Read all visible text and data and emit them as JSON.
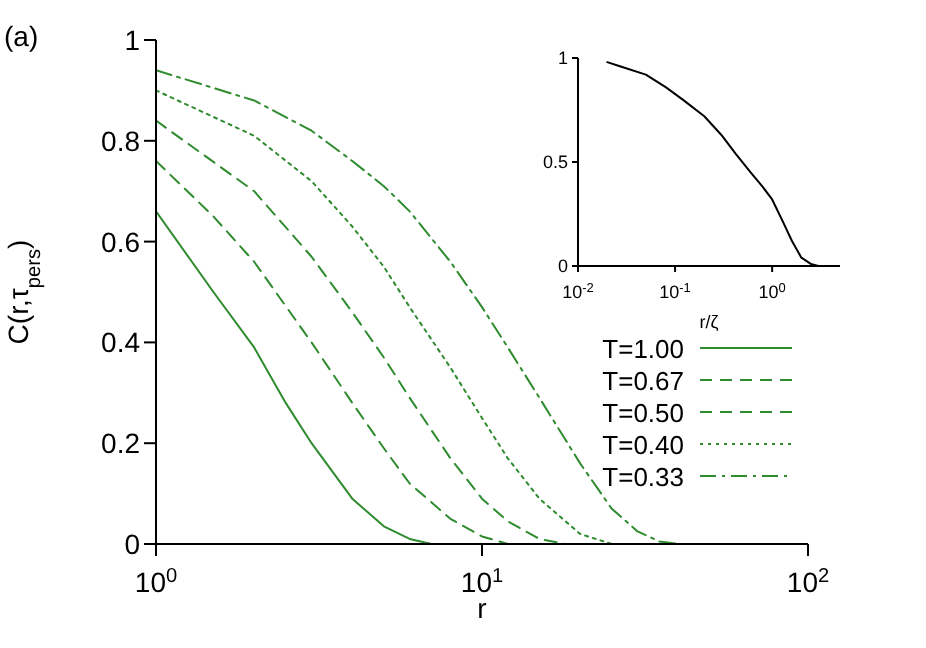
{
  "chart_data": [
    {
      "type": "line",
      "xlabel": "r",
      "ylabel": "C(r,τ$_{pers}$)",
      "annotations": [
        "(a)"
      ],
      "log": "x",
      "xlim": [
        1,
        100
      ],
      "xticks": [
        {
          "value": 1,
          "label": "10$^{0}$"
        },
        {
          "value": 10,
          "label": "10$^{1}$"
        },
        {
          "value": 100,
          "label": "10$^{2}$"
        }
      ],
      "ylim": [
        0,
        1
      ],
      "yticks": [
        0,
        0.2,
        0.4,
        0.6,
        0.8,
        1
      ],
      "grid": false,
      "legend": "bottom right",
      "marker": "none",
      "series": [
        {
          "name": "T=1.00",
          "color": "#2e8b2e",
          "line_style": "solid",
          "x": [
            1,
            1.5,
            2,
            2.5,
            3,
            4,
            5,
            6,
            7
          ],
          "values": [
            0.66,
            0.5,
            0.39,
            0.28,
            0.2,
            0.09,
            0.035,
            0.01,
            0
          ]
        },
        {
          "name": "T=0.67",
          "color": "#2e8b2e",
          "line_style": "dashed",
          "x": [
            1,
            1.5,
            2,
            3,
            4,
            5,
            6,
            8,
            10,
            12
          ],
          "values": [
            0.76,
            0.65,
            0.56,
            0.4,
            0.28,
            0.19,
            0.12,
            0.05,
            0.015,
            0
          ]
        },
        {
          "name": "T=0.50",
          "color": "#2e8b2e",
          "line_style": "dashed",
          "x": [
            1,
            2,
            3,
            4,
            5,
            6,
            8,
            10,
            12,
            15,
            18
          ],
          "values": [
            0.84,
            0.7,
            0.57,
            0.46,
            0.37,
            0.29,
            0.17,
            0.09,
            0.045,
            0.01,
            0
          ]
        },
        {
          "name": "T=0.40",
          "color": "#2e8b2e",
          "line_style": "dotted",
          "x": [
            1,
            2,
            3,
            4,
            5,
            6,
            8,
            10,
            12,
            15,
            20,
            25
          ],
          "values": [
            0.9,
            0.81,
            0.72,
            0.63,
            0.55,
            0.47,
            0.35,
            0.25,
            0.17,
            0.09,
            0.02,
            0
          ]
        },
        {
          "name": "T=0.33",
          "color": "#2e8b2e",
          "line_style": "dashdot",
          "x": [
            1,
            2,
            3,
            4,
            5,
            6,
            8,
            10,
            12,
            15,
            20,
            25,
            30,
            35,
            40
          ],
          "values": [
            0.94,
            0.88,
            0.82,
            0.76,
            0.71,
            0.66,
            0.56,
            0.47,
            0.39,
            0.29,
            0.16,
            0.07,
            0.025,
            0.005,
            0
          ]
        }
      ]
    },
    {
      "type": "line",
      "xlabel": "r/ζ",
      "log": "x",
      "xlim": [
        0.01,
        5
      ],
      "xticks": [
        {
          "value": 0.01,
          "label": "10$^{-2}$"
        },
        {
          "value": 0.1,
          "label": "10$^{-1}$"
        },
        {
          "value": 1,
          "label": "10$^{0}$"
        }
      ],
      "ylim": [
        0,
        1
      ],
      "yticks": [
        0,
        0.5,
        1
      ],
      "grid": false,
      "marker": "none",
      "series": [
        {
          "color": "#000000",
          "line_style": "solid",
          "x": [
            0.02,
            0.027,
            0.05,
            0.08,
            0.12,
            0.2,
            0.3,
            0.42,
            0.6,
            0.8,
            1,
            1.3,
            1.6,
            2,
            2.5,
            3,
            3.5
          ],
          "values": [
            0.98,
            0.96,
            0.92,
            0.86,
            0.8,
            0.72,
            0.63,
            0.54,
            0.45,
            0.38,
            0.32,
            0.21,
            0.12,
            0.04,
            0.01,
            0,
            0
          ]
        }
      ]
    }
  ]
}
